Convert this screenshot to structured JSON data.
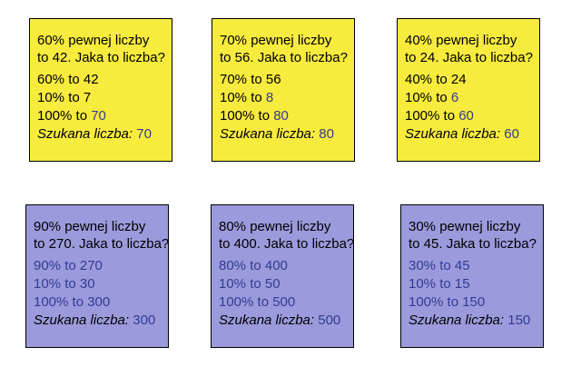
{
  "cards": [
    {
      "q1": "60% pewnej liczby",
      "q2": "to 42. Jaka to liczba?",
      "l1a": "60% to 42",
      "l1b": "",
      "l2a": "10% to 7",
      "l2b": "",
      "l3a": "100% to ",
      "l3b": "70",
      "ans_label": "Szukana liczba:",
      "ans_value": " 70"
    },
    {
      "q1": "70% pewnej liczby",
      "q2": "to 56. Jaka to liczba?",
      "l1a": "70% to 56",
      "l1b": "",
      "l2a": "10% to ",
      "l2b": "8",
      "l3a": "100% to ",
      "l3b": "80",
      "ans_label": "Szukana liczba:",
      "ans_value": " 80"
    },
    {
      "q1": "40% pewnej liczby",
      "q2": "to 24. Jaka to liczba?",
      "l1a": "40% to 24",
      "l1b": "",
      "l2a": "10% to ",
      "l2b": "6",
      "l3a": "100% to ",
      "l3b": "60",
      "ans_label": "Szukana liczba:",
      "ans_value": " 60"
    },
    {
      "q1": "90% pewnej liczby",
      "q2": "to 270. Jaka to liczba?",
      "l1a": "",
      "l1b": "90% to 270",
      "l2a": "",
      "l2b": "10% to 30",
      "l3a": "",
      "l3b": "100% to 300",
      "ans_label": "Szukana liczba:",
      "ans_value": " 300"
    },
    {
      "q1": "80% pewnej liczby",
      "q2": "to 400. Jaka to liczba?",
      "l1a": "",
      "l1b": "80% to 400",
      "l2a": "",
      "l2b": "10% to 50",
      "l3a": "",
      "l3b": "100% to 500",
      "ans_label": "Szukana liczba:",
      "ans_value": " 500"
    },
    {
      "q1": "30% pewnej liczby",
      "q2": "to 45. Jaka to liczba?",
      "l1a": "",
      "l1b": "30% to 45",
      "l2a": "",
      "l2b": "10% to 15",
      "l3a": "",
      "l3b": "100% to 150",
      "ans_label": "Szukana liczba:",
      "ans_value": " 150"
    }
  ],
  "colors": {
    "yellow": "#f7eb3d",
    "purple": "#9a9adc",
    "highlight": "#343c91"
  }
}
